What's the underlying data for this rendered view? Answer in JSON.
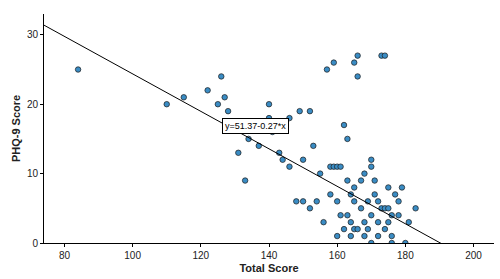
{
  "chart_data": {
    "type": "scatter",
    "x_label": "Total Score",
    "y_label": "PHQ-9 Score",
    "xlim": [
      74,
      206
    ],
    "ylim": [
      0,
      33
    ],
    "xticks": [
      80,
      100,
      120,
      140,
      160,
      180,
      200
    ],
    "yticks": [
      0,
      10,
      20,
      30
    ],
    "grid": false,
    "color": "#3a8cc4",
    "marker": "circle",
    "x": [
      84,
      110,
      115,
      122,
      125,
      126,
      127,
      128,
      130,
      131,
      133,
      134,
      137,
      140,
      140,
      141,
      143,
      144,
      146,
      146,
      148,
      149,
      150,
      150,
      152,
      152,
      153,
      154,
      155,
      156,
      157,
      158,
      158,
      159,
      159,
      160,
      160,
      160,
      161,
      161,
      162,
      162,
      163,
      163,
      163,
      164,
      164,
      164,
      165,
      165,
      165,
      165,
      166,
      166,
      166,
      167,
      167,
      168,
      168,
      168,
      169,
      169,
      170,
      170,
      170,
      170,
      171,
      171,
      172,
      172,
      172,
      173,
      173,
      174,
      174,
      174,
      175,
      175,
      175,
      176,
      176,
      176,
      177,
      178,
      178,
      179,
      180,
      181,
      183
    ],
    "y": [
      25,
      20,
      21,
      22,
      20,
      24,
      21,
      19,
      17,
      13,
      9,
      15,
      14,
      20,
      18,
      16,
      13,
      12,
      18,
      11,
      6,
      19,
      12,
      6,
      5,
      19,
      14,
      6,
      10,
      3,
      25,
      11,
      7,
      26,
      11,
      11,
      1,
      6,
      11,
      4,
      2,
      17,
      4,
      9,
      15,
      1,
      7,
      3,
      6,
      8,
      2,
      26,
      27,
      24,
      2,
      5,
      9,
      3,
      1,
      10,
      2,
      6,
      0,
      4,
      12,
      11,
      9,
      7,
      6,
      1,
      3,
      5,
      27,
      27,
      2,
      5,
      8,
      3,
      5,
      4,
      0,
      1,
      7,
      6,
      4,
      8,
      0,
      3,
      5
    ],
    "fit": {
      "intercept": 51.37,
      "slope": -0.27,
      "label": "y=51.37-0.27*x",
      "color": "#000000"
    }
  }
}
